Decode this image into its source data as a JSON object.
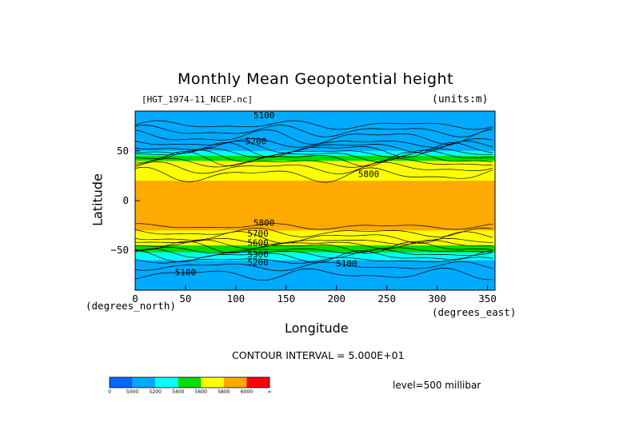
{
  "chart_data": {
    "type": "heatmap",
    "title": "Monthly Mean Geopotential height",
    "source_label": "[HGT_1974-11_NCEP.nc]",
    "units_label": "(units:m)",
    "xlabel": "Longitude",
    "ylabel": "Latitude",
    "x_axis_note": "(degrees_east)",
    "y_axis_note": "(degrees_north)",
    "xlim": [
      0,
      357.5
    ],
    "ylim": [
      -90,
      90
    ],
    "x_ticks": [
      "0",
      "50",
      "100",
      "150",
      "200",
      "250",
      "300",
      "350"
    ],
    "x_tick_values": [
      0,
      50,
      100,
      150,
      200,
      250,
      300,
      350
    ],
    "y_ticks": [
      "50",
      "0",
      "−50"
    ],
    "y_tick_values": [
      50,
      0,
      -50
    ],
    "contour_interval_text": "CONTOUR INTERVAL = 5.000E+01",
    "level_text": "level=500 millibar",
    "contour_labels": [
      {
        "text": "5100",
        "lon": 128,
        "lat": 86
      },
      {
        "text": "5200",
        "lon": 120,
        "lat": 60
      },
      {
        "text": "5800",
        "lon": 232,
        "lat": 27
      },
      {
        "text": "5800",
        "lon": 128,
        "lat": -22
      },
      {
        "text": "5700",
        "lon": 122,
        "lat": -33
      },
      {
        "text": "5600",
        "lon": 122,
        "lat": -42
      },
      {
        "text": "5300",
        "lon": 122,
        "lat": -54
      },
      {
        "text": "5200",
        "lon": 122,
        "lat": -62
      },
      {
        "text": "5100",
        "lon": 210,
        "lat": -63
      },
      {
        "text": "5100",
        "lon": 50,
        "lat": -72
      }
    ],
    "colorbar": {
      "levels": [
        "0",
        "5000",
        "5200",
        "5400",
        "5600",
        "5800",
        "6000",
        "∞"
      ],
      "colors": [
        "#0066ff",
        "#00aaff",
        "#00ffff",
        "#00dd00",
        "#ffff00",
        "#ffaa00",
        "#ff0000"
      ]
    },
    "zonal_profile": [
      {
        "lat": 90,
        "band": 1
      },
      {
        "lat": 55,
        "band": 1
      },
      {
        "lat": 50,
        "band": 2
      },
      {
        "lat": 45,
        "band": 3
      },
      {
        "lat": 40,
        "band": 4
      },
      {
        "lat": 25,
        "band": 4
      },
      {
        "lat": 20,
        "band": 5
      },
      {
        "lat": -25,
        "band": 5
      },
      {
        "lat": -30,
        "band": 4
      },
      {
        "lat": -40,
        "band": 4
      },
      {
        "lat": -45,
        "band": 3
      },
      {
        "lat": -52,
        "band": 2
      },
      {
        "lat": -60,
        "band": 1
      },
      {
        "lat": -90,
        "band": 1
      }
    ]
  }
}
